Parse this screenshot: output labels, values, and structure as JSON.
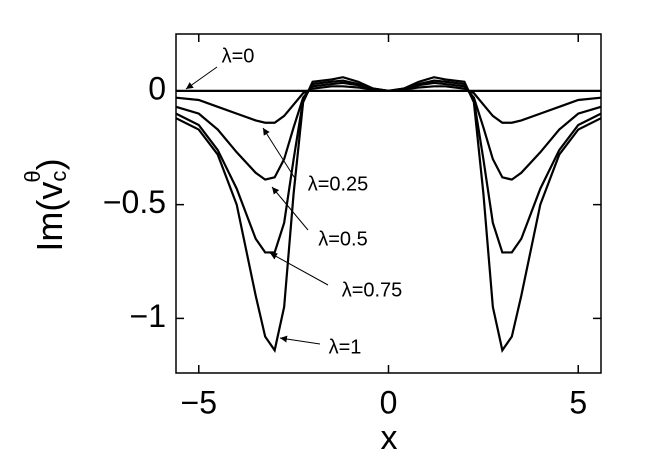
{
  "chart_data": {
    "type": "line",
    "xlabel": "x",
    "ylabel": {
      "base": "Im(v",
      "sub": "c",
      "sup": "θ",
      "close": ")"
    },
    "x": [
      -5.6,
      -5,
      -4.5,
      -4,
      -3.5,
      -3.25,
      -3,
      -2.75,
      -2.5,
      -2.25,
      -2,
      -1.5,
      -1.2,
      -0.8,
      -0.4,
      0,
      0.4,
      0.8,
      1.2,
      1.5,
      2,
      2.25,
      2.5,
      2.75,
      3,
      3.25,
      3.5,
      4,
      4.5,
      5,
      5.6
    ],
    "series": [
      {
        "name": "λ=0",
        "color": "#000000",
        "values": [
          0,
          0,
          0,
          0,
          0,
          0,
          0,
          0,
          0,
          0,
          0,
          0,
          0,
          0,
          0,
          0,
          0,
          0,
          0,
          0,
          0,
          0,
          0,
          0,
          0,
          0,
          0,
          0,
          0,
          0,
          0
        ]
      },
      {
        "name": "λ=0.25",
        "color": "#000000",
        "values": [
          -0.03,
          -0.04,
          -0.07,
          -0.1,
          -0.13,
          -0.14,
          -0.14,
          -0.11,
          -0.06,
          -0.01,
          0.01,
          0.02,
          0.02,
          0.015,
          0.005,
          0,
          0.005,
          0.015,
          0.02,
          0.02,
          0.01,
          -0.01,
          -0.06,
          -0.11,
          -0.14,
          -0.14,
          -0.13,
          -0.1,
          -0.07,
          -0.04,
          -0.03
        ]
      },
      {
        "name": "λ=0.5",
        "color": "#000000",
        "values": [
          -0.07,
          -0.1,
          -0.17,
          -0.27,
          -0.36,
          -0.39,
          -0.38,
          -0.3,
          -0.16,
          -0.03,
          0.02,
          0.03,
          0.035,
          0.025,
          0.005,
          0,
          0.005,
          0.025,
          0.035,
          0.03,
          0.02,
          -0.03,
          -0.16,
          -0.3,
          -0.38,
          -0.39,
          -0.36,
          -0.27,
          -0.17,
          -0.1,
          -0.07
        ]
      },
      {
        "name": "λ=0.75",
        "color": "#000000",
        "values": [
          -0.1,
          -0.15,
          -0.26,
          -0.43,
          -0.65,
          -0.71,
          -0.71,
          -0.58,
          -0.3,
          -0.04,
          0.03,
          0.04,
          0.045,
          0.03,
          0.01,
          0,
          0.01,
          0.03,
          0.045,
          0.04,
          0.03,
          -0.04,
          -0.3,
          -0.58,
          -0.71,
          -0.71,
          -0.65,
          -0.43,
          -0.26,
          -0.15,
          -0.1
        ]
      },
      {
        "name": "λ=1",
        "color": "#000000",
        "values": [
          -0.12,
          -0.17,
          -0.28,
          -0.5,
          -0.9,
          -1.08,
          -1.14,
          -0.95,
          -0.45,
          -0.05,
          0.04,
          0.05,
          0.06,
          0.04,
          0.01,
          0,
          0.01,
          0.04,
          0.06,
          0.05,
          0.04,
          -0.05,
          -0.45,
          -0.95,
          -1.14,
          -1.08,
          -0.9,
          -0.5,
          -0.28,
          -0.17,
          -0.12
        ]
      }
    ],
    "xlim": [
      -5.6,
      5.6
    ],
    "ylim": [
      -1.24,
      0.25
    ],
    "xticks": [
      {
        "value": -5,
        "label": "−5"
      },
      0,
      5
    ],
    "yticks": [
      0,
      {
        "value": -0.5,
        "label": "−0.5"
      },
      {
        "value": -1,
        "label": "−1"
      }
    ],
    "grid": false
  }
}
